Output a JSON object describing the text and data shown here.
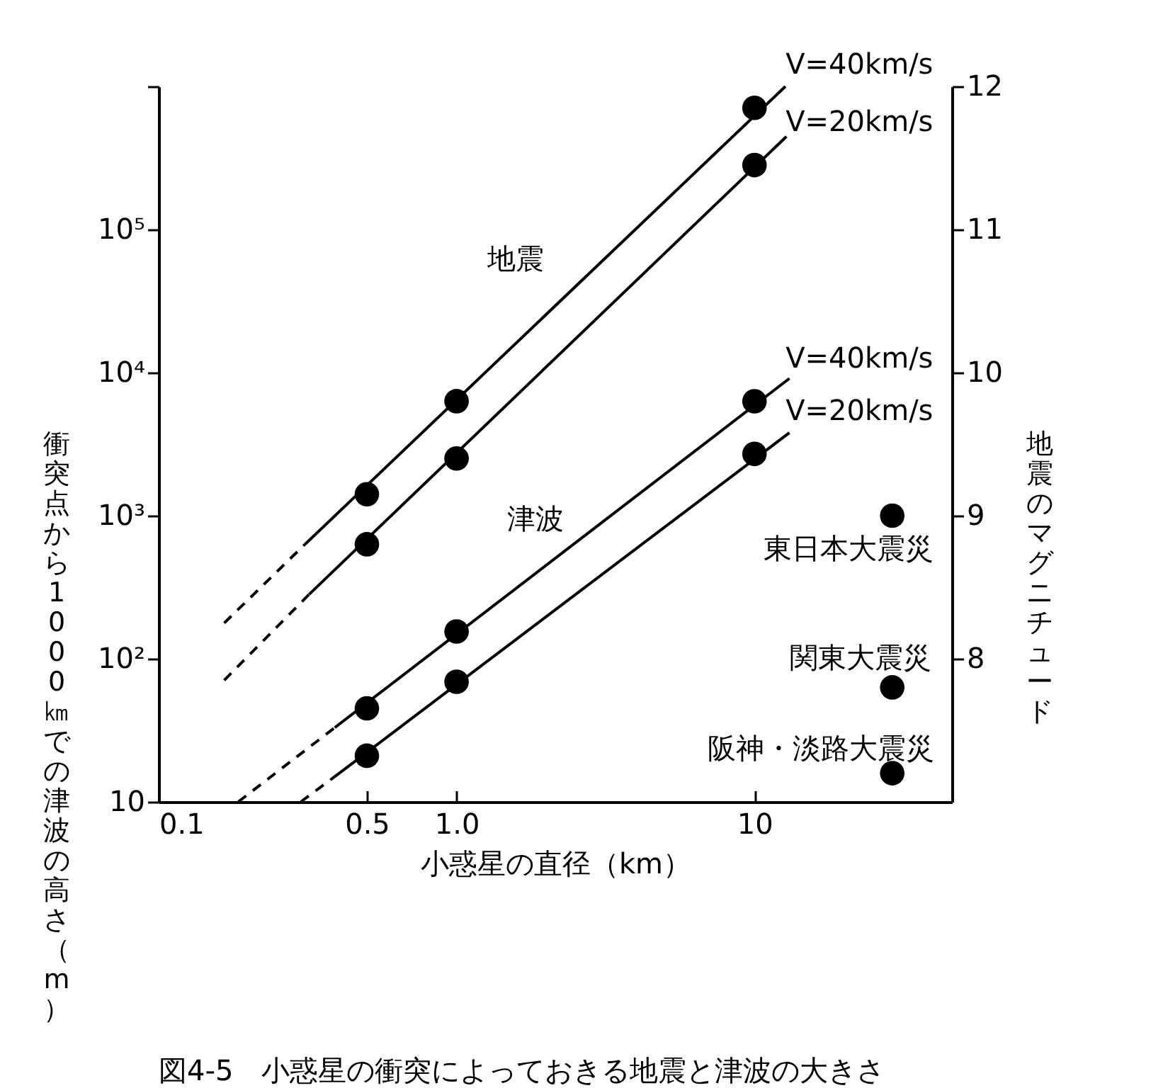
{
  "chart_data": {
    "type": "line",
    "title": "図4-5　小惑星の衝突によっておきる地震と津波の大きさ",
    "xlabel": "小惑星の直径（km）",
    "ylabel": "衝突点から1000㎞での津波の高さ（m）",
    "y2label": "地震のマグニチュード",
    "log": "xy",
    "xlim": [
      0.1,
      46
    ],
    "xticks": [
      0.1,
      0.5,
      {
        "value": 1,
        "label": "1.0"
      },
      10
    ],
    "ylim": [
      10,
      1000000
    ],
    "yticks": [
      10,
      {
        "value": 100,
        "label": "10²"
      },
      {
        "value": 1000,
        "label": "10³"
      },
      {
        "value": 10000,
        "label": "10⁴"
      },
      {
        "value": 100000,
        "label": "10⁵"
      },
      {
        "value": 1000000,
        "label": null
      }
    ],
    "y2lim": [
      7,
      12
    ],
    "y2ticks": [
      8,
      9,
      10,
      11,
      12
    ],
    "series": [
      {
        "type": "line",
        "line_style": "dashed",
        "color": "#000000",
        "x": [
          0.185,
          0.39
        ],
        "values": [
          10,
          33
        ]
      },
      {
        "type": "line",
        "line_style": "solid",
        "color": "#000000",
        "x": [
          0.39,
          13.1
        ],
        "values": [
          33,
          9100
        ]
      },
      {
        "type": "scatter",
        "marker": "circle",
        "name": "V=40km/s",
        "color": "#000000",
        "x": [
          0.5,
          1,
          10
        ],
        "values": [
          45,
          155,
          6300
        ]
      },
      {
        "type": "line",
        "line_style": "dashed",
        "color": "#000000",
        "x": [
          0.3,
          0.39
        ],
        "values": [
          10,
          15
        ]
      },
      {
        "type": "line",
        "line_style": "solid",
        "color": "#000000",
        "x": [
          0.39,
          13.1
        ],
        "values": [
          15,
          3800
        ]
      },
      {
        "type": "scatter",
        "marker": "circle",
        "name": "V=20km/s",
        "color": "#000000",
        "x": [
          0.5,
          1,
          10
        ],
        "values": [
          21,
          69,
          2700
        ]
      },
      {
        "type": "line",
        "axis": "y2",
        "line_style": "dashed",
        "color": "#000000",
        "x": [
          0.166,
          0.31
        ],
        "values": [
          8.25,
          8.8
        ]
      },
      {
        "type": "line",
        "axis": "y2",
        "line_style": "solid",
        "color": "#000000",
        "x": [
          0.31,
          12.7
        ],
        "values": [
          8.8,
          12
        ]
      },
      {
        "type": "scatter",
        "axis": "y2",
        "marker": "circle",
        "name": "V=40km/s",
        "color": "#000000",
        "x": [
          0.5,
          1,
          10
        ],
        "values": [
          9.15,
          9.8,
          11.85
        ]
      },
      {
        "type": "line",
        "axis": "y2",
        "line_style": "dashed",
        "color": "#000000",
        "x": [
          0.166,
          0.32
        ],
        "values": [
          7.85,
          8.45
        ]
      },
      {
        "type": "line",
        "axis": "y2",
        "line_style": "solid",
        "color": "#000000",
        "x": [
          0.32,
          12.8
        ],
        "values": [
          8.45,
          11.65
        ]
      },
      {
        "type": "scatter",
        "axis": "y2",
        "marker": "circle",
        "name": "V=20km/s",
        "color": "#000000",
        "x": [
          0.5,
          1,
          10
        ],
        "values": [
          8.8,
          9.4,
          11.45
        ]
      },
      {
        "type": "scatter",
        "axis": "y2",
        "marker": "circle",
        "color": "#000000",
        "x": [
          29,
          29,
          29
        ],
        "values": [
          9.0,
          7.8,
          7.2
        ]
      }
    ],
    "annotations": [
      "地震",
      "津波",
      "東日本大震災",
      "関東大震災",
      "阪神・淡路大震災"
    ]
  }
}
